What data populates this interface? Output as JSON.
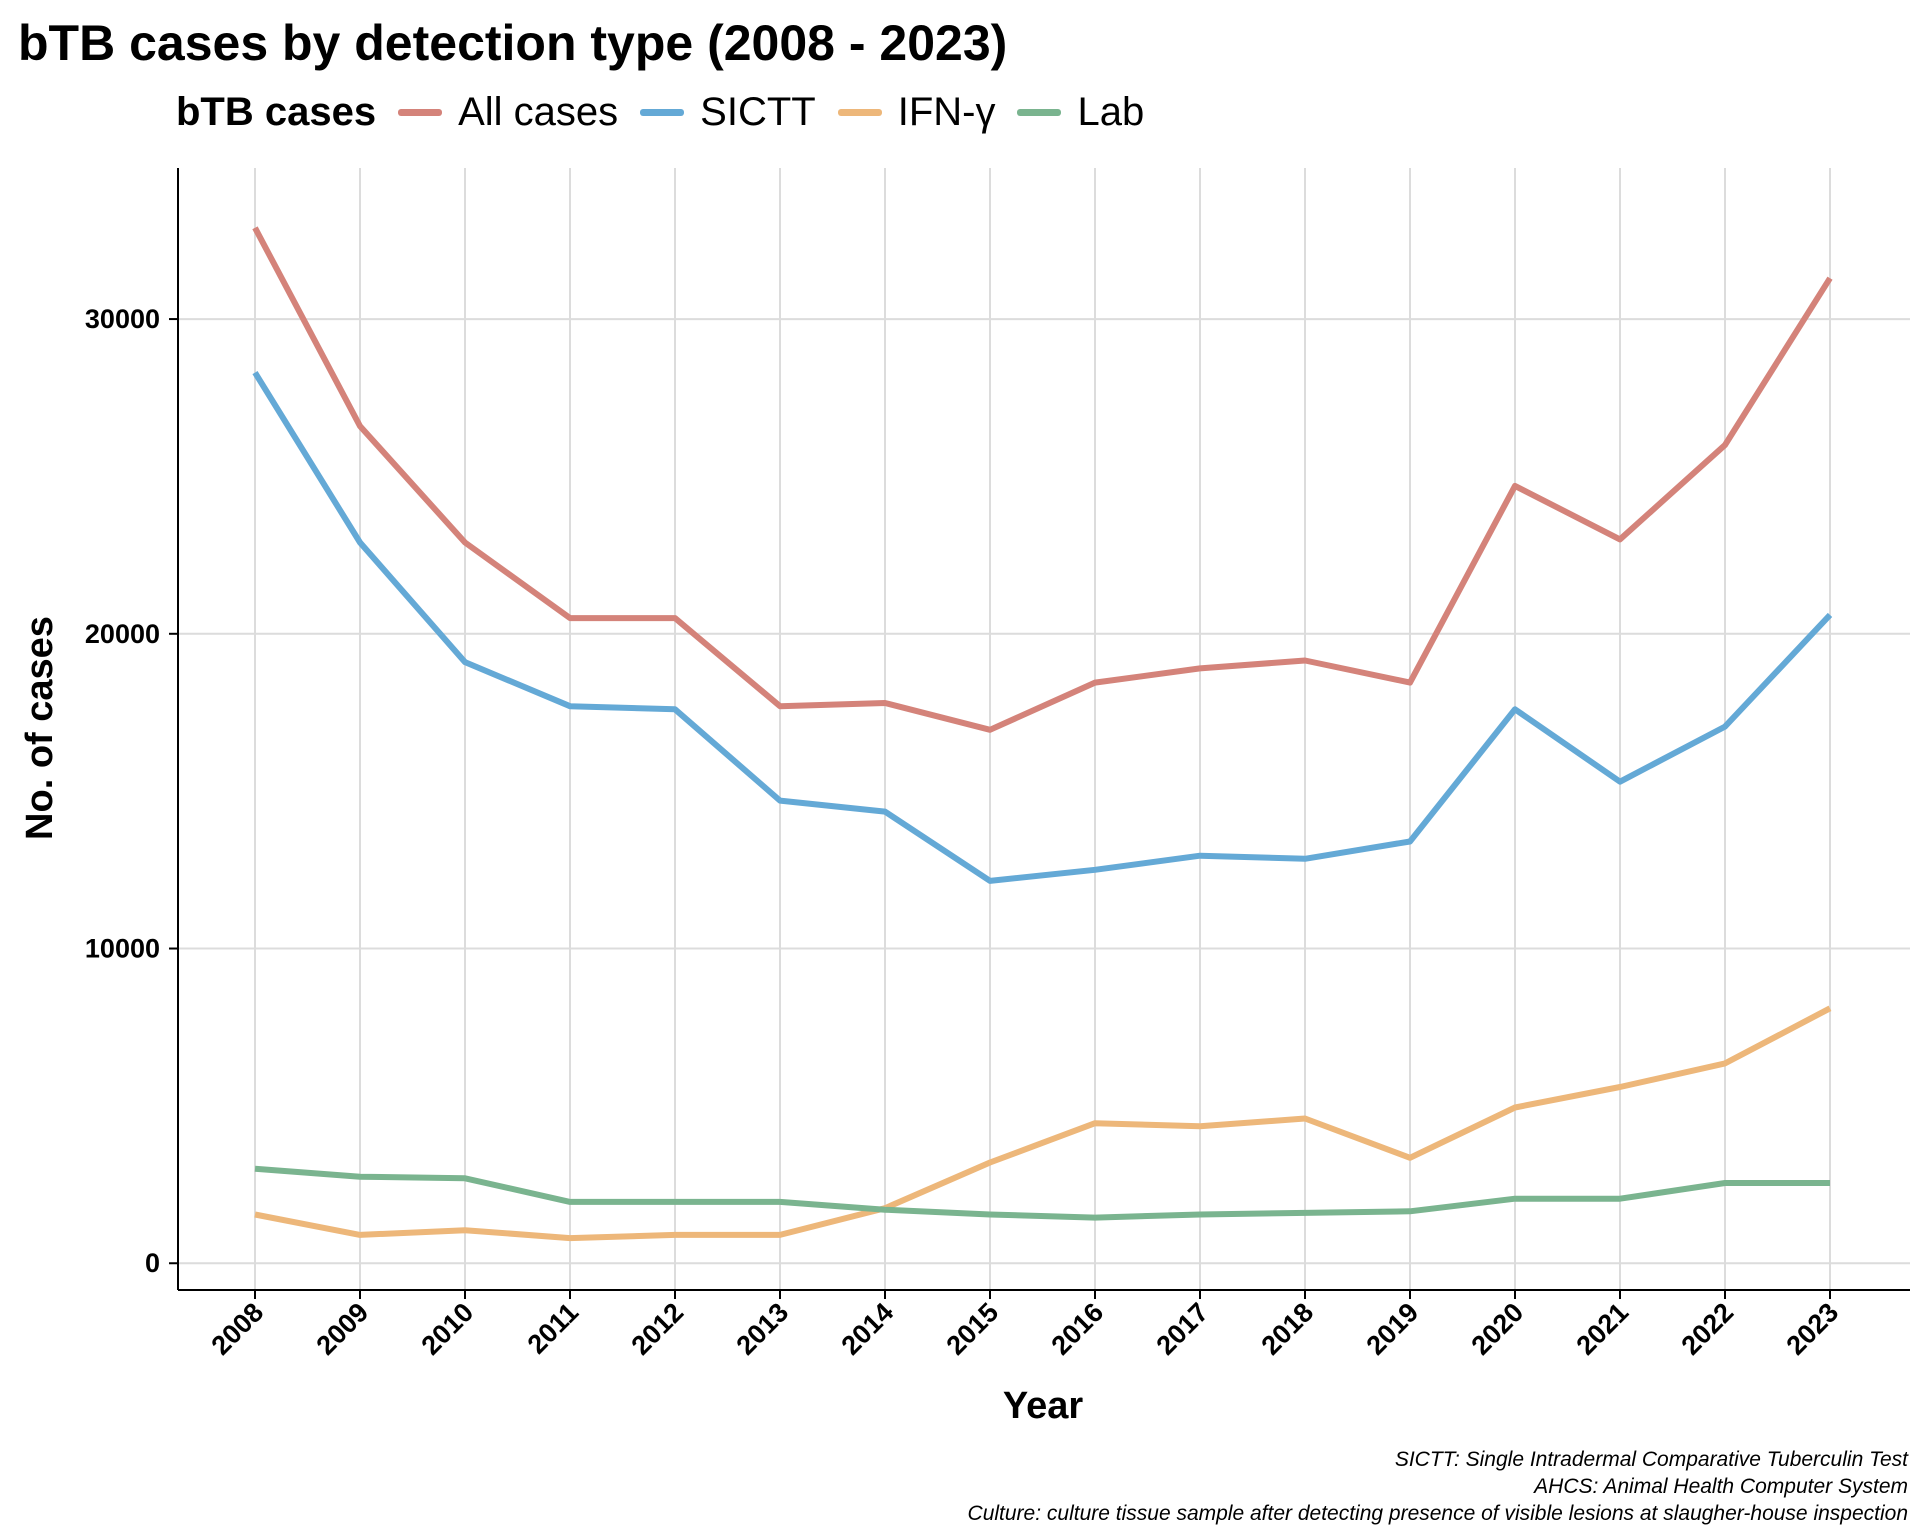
{
  "chart_data": {
    "type": "line",
    "title": "bTB cases by detection type (2008 - 2023)",
    "xlabel": "Year",
    "ylabel": "No. of cases",
    "legend_title": "bTB cases",
    "legend_position": "top",
    "grid": true,
    "categories": [
      "2008",
      "2009",
      "2010",
      "2011",
      "2012",
      "2013",
      "2014",
      "2015",
      "2016",
      "2017",
      "2018",
      "2019",
      "2020",
      "2021",
      "2022",
      "2023"
    ],
    "y_ticks": [
      0,
      10000,
      20000,
      30000
    ],
    "y_tick_labels": [
      "0",
      "10000",
      "20000",
      "30000"
    ],
    "ylim": [
      -850,
      34800
    ],
    "series": [
      {
        "name": "All cases",
        "color": "#d4837a",
        "values": [
          32900,
          26600,
          22900,
          20500,
          20500,
          17700,
          17800,
          16950,
          18450,
          18900,
          19150,
          18450,
          24700,
          23000,
          26000,
          31300
        ]
      },
      {
        "name": "SICTT",
        "color": "#64a9d6",
        "values": [
          28300,
          22900,
          19100,
          17700,
          17600,
          14700,
          14350,
          12150,
          12500,
          12950,
          12850,
          13400,
          17600,
          15300,
          17050,
          20600
        ]
      },
      {
        "name": "IFN-γ",
        "color": "#edb77a",
        "values": [
          1550,
          900,
          1050,
          800,
          900,
          900,
          1750,
          3200,
          4450,
          4350,
          4600,
          3350,
          4950,
          5600,
          6350,
          8100
        ]
      },
      {
        "name": "Lab",
        "color": "#7ab48f",
        "values": [
          3000,
          2750,
          2700,
          1950,
          1950,
          1950,
          1700,
          1550,
          1450,
          1550,
          1600,
          1650,
          2050,
          2050,
          2550,
          2550
        ]
      }
    ],
    "caption": [
      "SICTT: Single Intradermal Comparative Tuberculin Test",
      "AHCS: Animal Health Computer System",
      "Culture: culture tissue sample after detecting presence of visible lesions at slaugher-house inspection"
    ]
  }
}
